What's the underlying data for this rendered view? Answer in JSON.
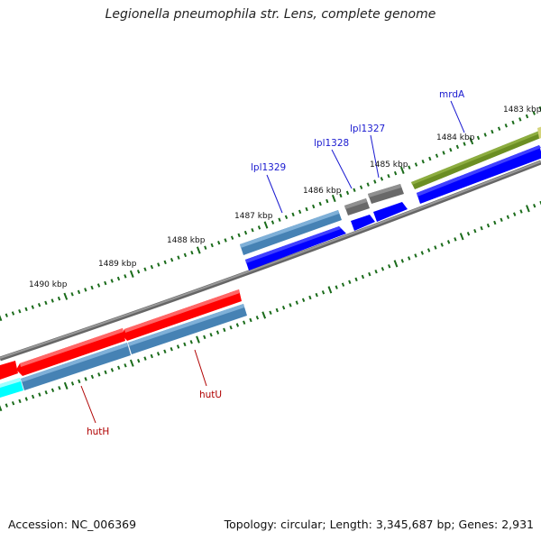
{
  "title": "Legionella pneumophila str. Lens, complete genome",
  "footer": {
    "accession": "Accession: NC_006369",
    "summary": "Topology: circular; Length: 3,345,687 bp; Genes: 2,931"
  },
  "map": {
    "kbp_labels": [
      "1483 kbp",
      "1484 kbp",
      "1485 kbp",
      "1486 kbp",
      "1487 kbp",
      "1488 kbp",
      "1489 kbp",
      "1490 kbp"
    ],
    "gene_labels": {
      "mrdA": "mrdA",
      "lpl1327": "lpl1327",
      "lpl1328": "lpl1328",
      "lpl1329": "lpl1329",
      "hutU": "hutU",
      "hutH": "hutH"
    }
  },
  "colors": {
    "forward_cds": "#4682b4",
    "forward_arrow": "#0000ff",
    "reverse_cds": "#ff0000",
    "mrdA": "#6b8e23",
    "hypothetical": "#696969",
    "partial_cyan": "#00ffff",
    "backbone": "#808080",
    "tick": "#1a6b1a",
    "label_blue": "#1a1ad0",
    "label_red": "#b00000"
  }
}
